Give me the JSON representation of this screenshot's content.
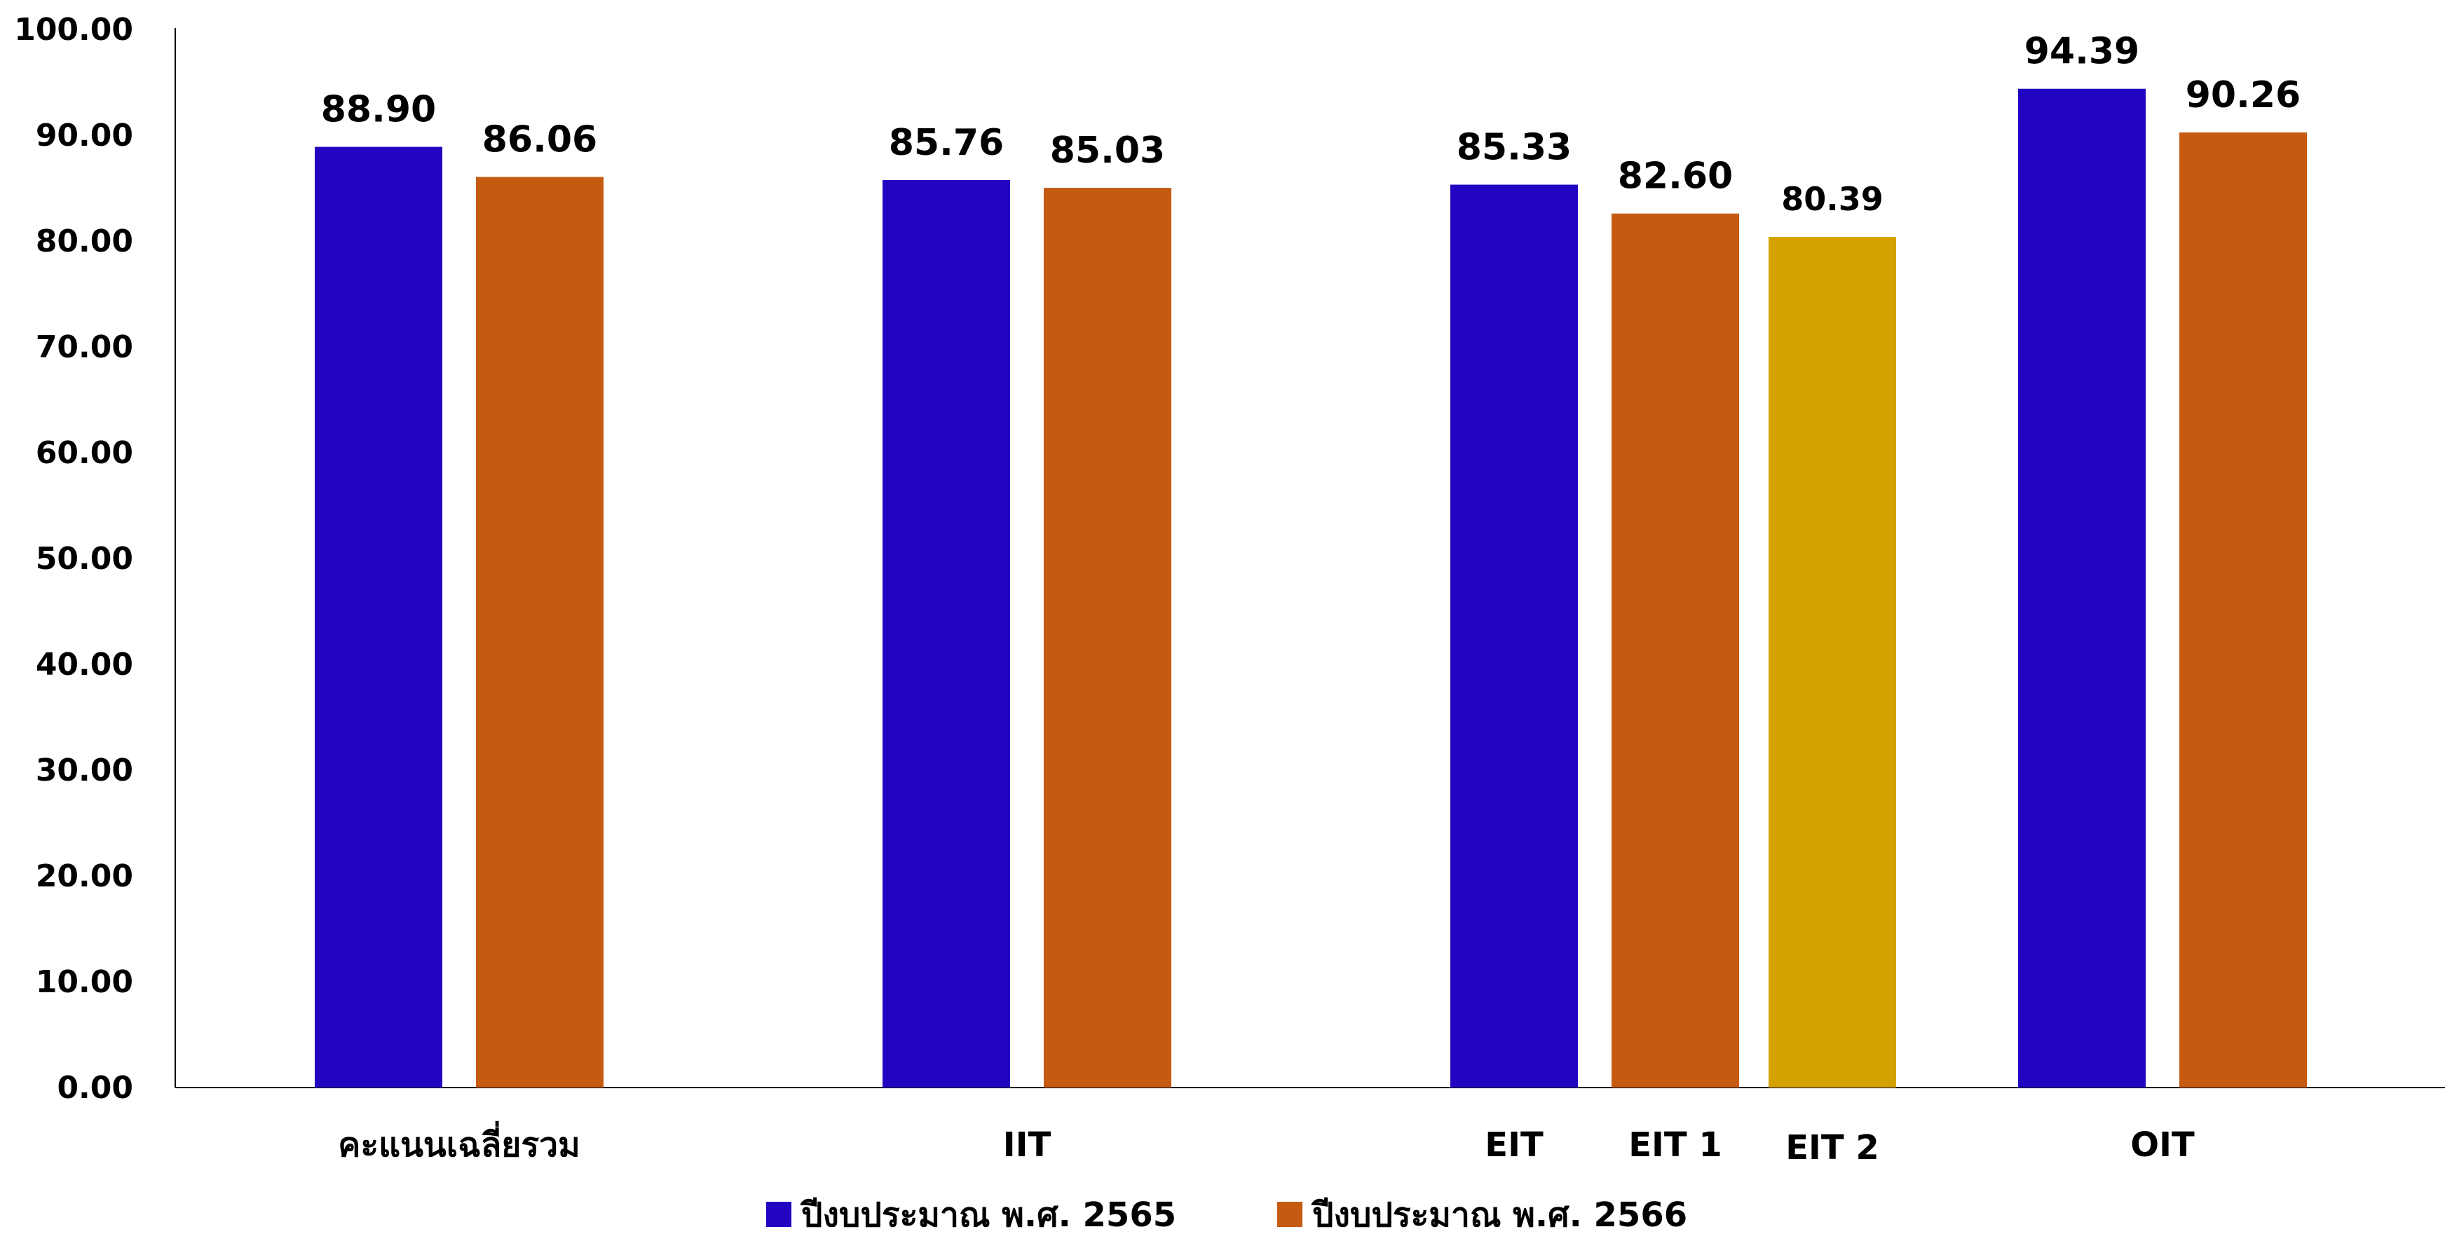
{
  "chart_data": {
    "type": "bar",
    "title": "",
    "xlabel": "",
    "ylabel": "",
    "ylim": [
      0,
      100
    ],
    "yticks": [
      "0.00",
      "10.00",
      "20.00",
      "30.00",
      "40.00",
      "50.00",
      "60.00",
      "70.00",
      "80.00",
      "90.00",
      "100.00"
    ],
    "grid": false,
    "legend_position": "bottom",
    "series": [
      {
        "name": "ปีงบประมาณ พ.ศ. 2565",
        "color": "#2105C1"
      },
      {
        "name": "ปีงบประมาณ พ.ศ. 2566",
        "color": "#C55A11"
      }
    ],
    "groups": [
      {
        "name": "คะแนนเฉลี่ยรวม",
        "bars": [
          {
            "label": "",
            "value": 88.9,
            "display": "88.90",
            "color": "#2105C1"
          },
          {
            "label": "",
            "value": 86.06,
            "display": "86.06",
            "color": "#C55A11"
          }
        ]
      },
      {
        "name": "IIT",
        "bars": [
          {
            "label": "",
            "value": 85.76,
            "display": "85.76",
            "color": "#2105C1"
          },
          {
            "label": "",
            "value": 85.03,
            "display": "85.03",
            "color": "#C55A11"
          }
        ]
      },
      {
        "name": "",
        "bars": [
          {
            "label": "EIT",
            "value": 85.33,
            "display": "85.33",
            "color": "#2105C1"
          },
          {
            "label": "EIT 1",
            "value": 82.6,
            "display": "82.60",
            "color": "#C55A11"
          },
          {
            "label": "EIT 2",
            "value": 80.39,
            "display": "80.39",
            "color": "#D4A100"
          }
        ]
      },
      {
        "name": "OIT",
        "bars": [
          {
            "label": "",
            "value": 94.39,
            "display": "94.39",
            "color": "#2105C1"
          },
          {
            "label": "",
            "value": 90.26,
            "display": "90.26",
            "color": "#C55A11"
          }
        ]
      }
    ]
  }
}
